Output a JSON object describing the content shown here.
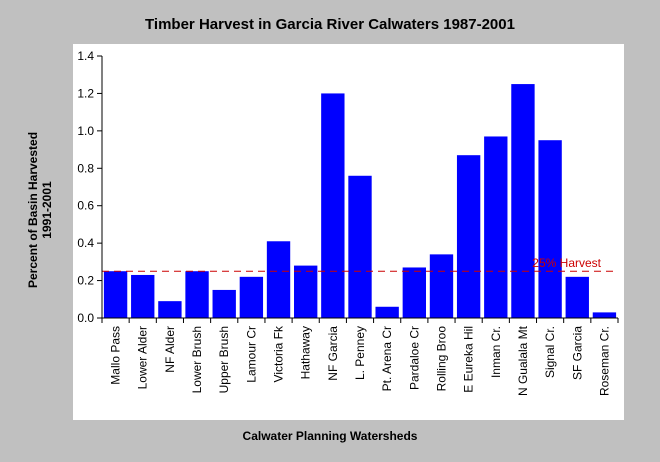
{
  "chart_data": {
    "type": "bar",
    "title": "Timber Harvest in Garcia River Calwaters 1987-2001",
    "xlabel": "Calwater Planning Watersheds",
    "ylabel_line1": "Percent of Basin Harvested",
    "ylabel_line2": "1991-2001",
    "ylim": [
      0,
      1.4
    ],
    "yticks": [
      "0.0",
      "0.2",
      "0.4",
      "0.6",
      "0.8",
      "1.0",
      "1.2",
      "1.4"
    ],
    "categories": [
      "Mallo Pass",
      "Lower Alder",
      "NF Alder",
      "Lower Brush",
      "Upper Brush",
      "Lamour Cr",
      "Victoria Fk",
      "Hathaway",
      "NF Garcia",
      "L. Penney",
      "Pt. Arena Cr",
      "Pardaloe Cr",
      "Rolling Broo",
      "E Eureka Hil",
      "Inman Cr.",
      "N Gualala Mt",
      "Signal Cr.",
      "SF Garcia",
      "Roseman Cr."
    ],
    "values": [
      0.25,
      0.23,
      0.09,
      0.25,
      0.15,
      0.22,
      0.41,
      0.28,
      1.2,
      0.76,
      0.06,
      0.27,
      0.34,
      0.87,
      0.97,
      1.25,
      0.95,
      0.22,
      0.03
    ],
    "reference_line": {
      "value": 0.25,
      "label": "25% Harvest",
      "color": "#cc0000"
    },
    "bar_color": "#0000ff",
    "plot_background": "#ffffff",
    "grid": false,
    "legend": "none"
  }
}
